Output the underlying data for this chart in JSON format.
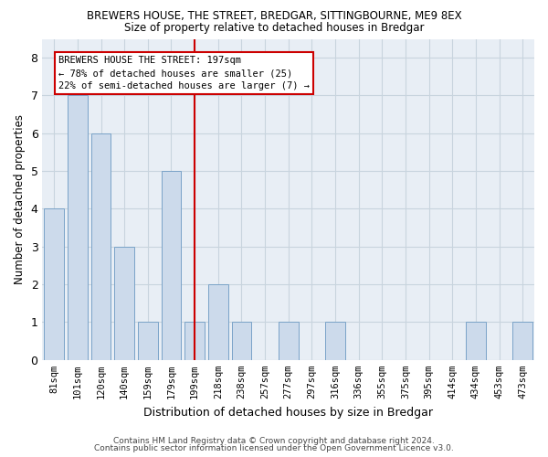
{
  "title1": "BREWERS HOUSE, THE STREET, BREDGAR, SITTINGBOURNE, ME9 8EX",
  "title2": "Size of property relative to detached houses in Bredgar",
  "xlabel": "Distribution of detached houses by size in Bredgar",
  "ylabel": "Number of detached properties",
  "categories": [
    "81sqm",
    "101sqm",
    "120sqm",
    "140sqm",
    "159sqm",
    "179sqm",
    "199sqm",
    "218sqm",
    "238sqm",
    "257sqm",
    "277sqm",
    "297sqm",
    "316sqm",
    "336sqm",
    "355sqm",
    "375sqm",
    "395sqm",
    "414sqm",
    "434sqm",
    "453sqm",
    "473sqm"
  ],
  "values": [
    4,
    7,
    6,
    3,
    1,
    5,
    1,
    2,
    1,
    0,
    1,
    0,
    1,
    0,
    0,
    0,
    0,
    0,
    1,
    0,
    1
  ],
  "bar_color": "#ccdaeb",
  "bar_edge_color": "#7aa3c8",
  "highlight_bar_index": 6,
  "highlight_line_color": "#cc0000",
  "annotation_line1": "BREWERS HOUSE THE STREET: 197sqm",
  "annotation_line2": "← 78% of detached houses are smaller (25)",
  "annotation_line3": "22% of semi-detached houses are larger (7) →",
  "annotation_box_edge": "#cc0000",
  "ylim": [
    0,
    8.5
  ],
  "yticks": [
    0,
    1,
    2,
    3,
    4,
    5,
    6,
    7,
    8
  ],
  "grid_color": "#c8d4de",
  "plot_bg": "#e8eef5",
  "footer1": "Contains HM Land Registry data © Crown copyright and database right 2024.",
  "footer2": "Contains public sector information licensed under the Open Government Licence v3.0."
}
